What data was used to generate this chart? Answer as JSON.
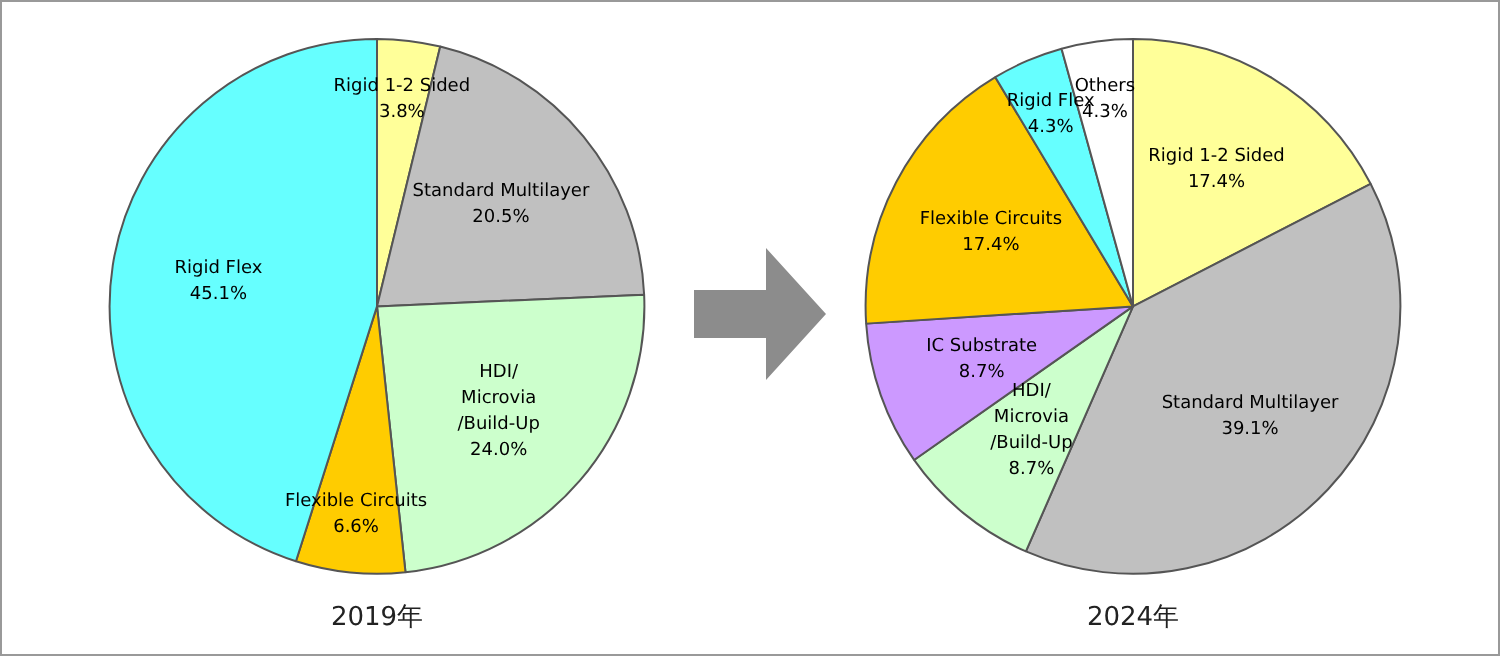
{
  "chart_data": [
    {
      "type": "pie",
      "title": "2019年",
      "categories": [
        "Rigid 1-2 Sided",
        "Standard Multilayer",
        "HDI/\nMicrovia\n/Build-Up",
        "Flexible Circuits",
        "Rigid Flex"
      ],
      "values": [
        3.8,
        20.5,
        24.0,
        6.6,
        45.1
      ],
      "colors": [
        "#ffff99",
        "#c0c0c0",
        "#ccffcc",
        "#ffcc00",
        "#66ffff"
      ],
      "value_labels": [
        "3.8%",
        "20.5%",
        "24.0%",
        "6.6%",
        "45.1%"
      ]
    },
    {
      "type": "pie",
      "title": "2024年",
      "categories": [
        "Rigid 1-2 Sided",
        "Standard Multilayer",
        "HDI/\nMicrovia\n/Build-Up",
        "IC Substrate",
        "Flexible Circuits",
        "Rigid Flex",
        "Others"
      ],
      "values": [
        17.4,
        39.1,
        8.7,
        8.7,
        17.4,
        4.3,
        4.3
      ],
      "colors": [
        "#ffff99",
        "#c0c0c0",
        "#ccffcc",
        "#cc99ff",
        "#ffcc00",
        "#66ffff",
        "#ffffff"
      ],
      "value_labels": [
        "17.4%",
        "39.1%",
        "8.7%",
        "8.7%",
        "17.4%",
        "4.3%",
        "4.3%"
      ]
    }
  ]
}
